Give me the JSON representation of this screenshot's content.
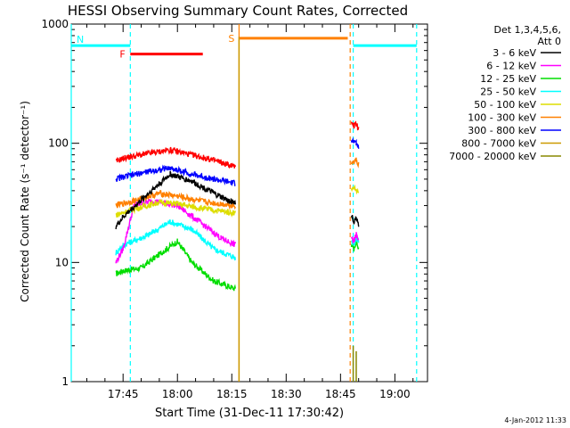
{
  "chart_data": {
    "type": "line",
    "title": "HESSI Observing Summary Count Rates, Corrected",
    "ylabel": "Corrected Count Rate (s⁻¹ detector⁻¹)",
    "xlabel": "Start Time (31-Dec-11 17:30:42)",
    "footer": "4-Jan-2012 11:33",
    "y_scale": "log",
    "ylim": [
      1,
      1000
    ],
    "xlim": [
      "17:30:42",
      "19:09:00"
    ],
    "y_ticks": [
      {
        "value": 1,
        "label": "1"
      },
      {
        "value": 10,
        "label": "10"
      },
      {
        "value": 100,
        "label": "100"
      },
      {
        "value": 1000,
        "label": "1000"
      }
    ],
    "x_ticks": [
      {
        "time": "17:45",
        "label": "17:45"
      },
      {
        "time": "18:00",
        "label": "18:00"
      },
      {
        "time": "18:15",
        "label": "18:15"
      },
      {
        "time": "18:30",
        "label": "18:30"
      },
      {
        "time": "18:45",
        "label": "18:45"
      },
      {
        "time": "19:00",
        "label": "19:00"
      }
    ],
    "legend": {
      "header": [
        "Det 1,3,4,5,6,",
        "Att 0"
      ],
      "placement": "right"
    },
    "series": [
      {
        "name": "3 - 6 keV",
        "color": "#000000",
        "segments": [
          {
            "t": [
              "17:43:00",
              "17:45:00",
              "17:52:00",
              "17:58:00",
              "18:04:00",
              "18:10:00",
              "18:14:00",
              "18:16:00"
            ],
            "y": [
              20,
              24,
              38,
              55,
              48,
              38,
              33,
              32
            ]
          },
          {
            "t": [
              "18:48:00",
              "18:48:40",
              "18:49:20",
              "18:50:00"
            ],
            "y": [
              25,
              22,
              24,
              20
            ]
          }
        ]
      },
      {
        "name": "6 - 12 keV",
        "color": "#ff00ff",
        "segments": [
          {
            "t": [
              "17:43:00",
              "17:45:00",
              "17:48:00",
              "17:53:00",
              "18:00:00",
              "18:06:00",
              "18:12:00",
              "18:16:00"
            ],
            "y": [
              10,
              13,
              30,
              33,
              30,
              22,
              16,
              14
            ]
          },
          {
            "t": [
              "18:48:00",
              "18:48:40",
              "18:49:20",
              "18:50:00"
            ],
            "y": [
              16,
              15,
              17,
              15
            ]
          }
        ]
      },
      {
        "name": "12 - 25 keV",
        "color": "#00dd00",
        "segments": [
          {
            "t": [
              "17:43:00",
              "17:45:00",
              "17:50:00",
              "17:57:00",
              "18:00:00",
              "18:04:00",
              "18:10:00",
              "18:16:00"
            ],
            "y": [
              8,
              8.5,
              9,
              13,
              15,
              10,
              7,
              6
            ]
          },
          {
            "t": [
              "18:48:00",
              "18:48:40",
              "18:49:20",
              "18:50:00"
            ],
            "y": [
              14,
              13,
              15,
              13
            ]
          }
        ]
      },
      {
        "name": "25 - 50 keV",
        "color": "#00ffff",
        "segments": [
          {
            "t": [
              "17:43:00",
              "17:45:00",
              "17:52:00",
              "17:58:00",
              "18:04:00",
              "18:10:00",
              "18:16:00"
            ],
            "y": [
              12,
              14,
              17,
              22,
              19,
              13,
              11
            ]
          },
          {
            "t": [
              "18:48:00",
              "18:48:40",
              "18:49:20",
              "18:50:00"
            ],
            "y": [
              15,
              14,
              16,
              15
            ]
          }
        ]
      },
      {
        "name": "50 - 100 keV",
        "color": "#dddd00",
        "segments": [
          {
            "t": [
              "17:43:00",
              "17:48:00",
              "17:55:00",
              "18:00:00",
              "18:08:00",
              "18:16:00"
            ],
            "y": [
              25,
              28,
              32,
              31,
              28,
              26
            ]
          },
          {
            "t": [
              "18:48:00",
              "18:48:40",
              "18:49:20",
              "18:50:00"
            ],
            "y": [
              40,
              42,
              40,
              39
            ]
          }
        ]
      },
      {
        "name": "100 - 300 keV",
        "color": "#ff8000",
        "segments": [
          {
            "t": [
              "17:43:00",
              "17:48:00",
              "17:55:00",
              "18:00:00",
              "18:08:00",
              "18:16:00"
            ],
            "y": [
              30,
              33,
              38,
              36,
              32,
              30
            ]
          },
          {
            "t": [
              "18:48:00",
              "18:48:40",
              "18:49:20",
              "18:50:00"
            ],
            "y": [
              70,
              68,
              72,
              66
            ]
          }
        ]
      },
      {
        "name": "300 - 800 keV",
        "color": "#0000ff",
        "segments": [
          {
            "t": [
              "17:43:00",
              "17:45:00",
              "17:52:00",
              "17:58:00",
              "18:04:00",
              "18:10:00",
              "18:16:00"
            ],
            "y": [
              50,
              52,
              58,
              62,
              55,
              50,
              46
            ]
          },
          {
            "t": [
              "18:48:00",
              "18:48:40",
              "18:49:20",
              "18:50:00"
            ],
            "y": [
              105,
              102,
              100,
              95
            ]
          }
        ]
      },
      {
        "name": "800 - 7000 keV",
        "color": "#cc9900",
        "segments": [
          {
            "t": [
              "18:17:00",
              "18:17:00"
            ],
            "y": [
              1,
              780
            ]
          }
        ]
      },
      {
        "name": "7000 - 20000 keV",
        "color": "#888800",
        "segments": [
          {
            "t": [
              "18:48:30",
              "18:48:30",
              "18:49:20",
              "18:49:20"
            ],
            "y": [
              1,
              2,
              1,
              1.8
            ]
          }
        ]
      }
    ],
    "overlay_red": {
      "segments": [
        {
          "t": [
            "17:43:00",
            "17:45:00",
            "17:52:00",
            "17:58:00",
            "18:04:00",
            "18:10:00",
            "18:14:00",
            "18:16:00"
          ],
          "y": [
            70,
            75,
            82,
            88,
            80,
            72,
            66,
            64
          ]
        },
        {
          "t": [
            "18:48:00",
            "18:48:40",
            "18:49:20",
            "18:50:00"
          ],
          "y": [
            145,
            140,
            145,
            130
          ]
        }
      ]
    },
    "flags": [
      {
        "label": "N",
        "color": "#00ffff",
        "t_start": "17:30:42",
        "t_end": "17:47:00",
        "y": 660
      },
      {
        "label": "F",
        "color": "#ff0000",
        "t_start": "17:47:00",
        "t_end": "18:07:00",
        "y": 560
      },
      {
        "label": "S",
        "color": "#ff8000",
        "t_start": "18:17:00",
        "t_end": "18:47:00",
        "y": 760
      },
      {
        "label": "",
        "color": "#00ffff",
        "t_start": "18:48:30",
        "t_end": "19:06:00",
        "y": 660
      }
    ],
    "dashed_lines": [
      {
        "t": "17:47:00",
        "color": "#00ffff"
      },
      {
        "t": "18:47:40",
        "color": "#ff8000"
      },
      {
        "t": "18:48:30",
        "color": "#00ffff"
      },
      {
        "t": "19:06:00",
        "color": "#00ffff"
      }
    ],
    "solid_lines": [
      {
        "t": "17:30:42",
        "color": "#00ffff"
      },
      {
        "t": "18:17:00",
        "color": "#ff8000"
      }
    ]
  }
}
